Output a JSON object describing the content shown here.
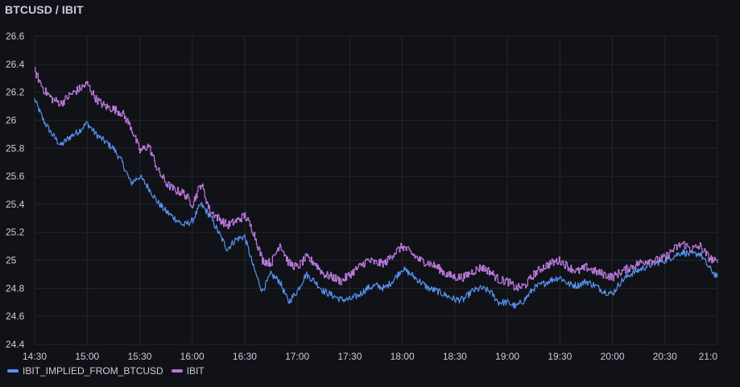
{
  "panel": {
    "title": "BTCUSD / IBIT"
  },
  "chart_data": {
    "type": "line",
    "title": "BTCUSD / IBIT",
    "xlabel": "",
    "ylabel": "",
    "x_ticks": [
      "14:30",
      "15:00",
      "15:30",
      "16:00",
      "16:30",
      "17:00",
      "17:30",
      "18:00",
      "18:30",
      "19:00",
      "19:30",
      "20:00",
      "20:30",
      "21:0"
    ],
    "y_ticks": [
      "24.4",
      "24.6",
      "24.8",
      "25",
      "25.2",
      "25.4",
      "25.6",
      "25.8",
      "26",
      "26.2",
      "26.4",
      "26.6"
    ],
    "xlim": [
      "14:30",
      "21:00"
    ],
    "ylim": [
      24.4,
      26.6
    ],
    "grid": true,
    "legend_position": "bottom-left",
    "series": [
      {
        "name": "IBIT_IMPLIED_FROM_BTCUSD",
        "color": "#5794f2",
        "style": "line",
        "points": [
          [
            "14:30",
            26.15
          ],
          [
            "14:35",
            26.0
          ],
          [
            "14:40",
            25.9
          ],
          [
            "14:45",
            25.82
          ],
          [
            "14:50",
            25.88
          ],
          [
            "14:55",
            25.92
          ],
          [
            "15:00",
            25.98
          ],
          [
            "15:05",
            25.9
          ],
          [
            "15:10",
            25.85
          ],
          [
            "15:15",
            25.8
          ],
          [
            "15:20",
            25.7
          ],
          [
            "15:25",
            25.55
          ],
          [
            "15:30",
            25.6
          ],
          [
            "15:35",
            25.52
          ],
          [
            "15:40",
            25.42
          ],
          [
            "15:45",
            25.35
          ],
          [
            "15:50",
            25.3
          ],
          [
            "15:55",
            25.25
          ],
          [
            "16:00",
            25.28
          ],
          [
            "16:05",
            25.4
          ],
          [
            "16:10",
            25.32
          ],
          [
            "16:15",
            25.2
          ],
          [
            "16:20",
            25.08
          ],
          [
            "16:25",
            25.15
          ],
          [
            "16:30",
            25.17
          ],
          [
            "16:35",
            24.95
          ],
          [
            "16:40",
            24.78
          ],
          [
            "16:45",
            24.9
          ],
          [
            "16:50",
            24.85
          ],
          [
            "16:55",
            24.7
          ],
          [
            "17:00",
            24.78
          ],
          [
            "17:05",
            24.9
          ],
          [
            "17:10",
            24.85
          ],
          [
            "17:15",
            24.78
          ],
          [
            "17:20",
            24.75
          ],
          [
            "17:25",
            24.72
          ],
          [
            "17:30",
            24.72
          ],
          [
            "17:35",
            24.75
          ],
          [
            "17:40",
            24.8
          ],
          [
            "17:45",
            24.82
          ],
          [
            "17:50",
            24.8
          ],
          [
            "17:55",
            24.86
          ],
          [
            "18:00",
            24.94
          ],
          [
            "18:05",
            24.9
          ],
          [
            "18:10",
            24.85
          ],
          [
            "18:15",
            24.8
          ],
          [
            "18:20",
            24.78
          ],
          [
            "18:25",
            24.75
          ],
          [
            "18:30",
            24.72
          ],
          [
            "18:35",
            24.72
          ],
          [
            "18:40",
            24.78
          ],
          [
            "18:45",
            24.8
          ],
          [
            "18:50",
            24.78
          ],
          [
            "18:55",
            24.7
          ],
          [
            "19:00",
            24.7
          ],
          [
            "19:05",
            24.67
          ],
          [
            "19:10",
            24.72
          ],
          [
            "19:15",
            24.8
          ],
          [
            "19:20",
            24.83
          ],
          [
            "19:25",
            24.86
          ],
          [
            "19:30",
            24.88
          ],
          [
            "19:35",
            24.83
          ],
          [
            "19:40",
            24.82
          ],
          [
            "19:45",
            24.85
          ],
          [
            "19:50",
            24.82
          ],
          [
            "19:55",
            24.78
          ],
          [
            "20:00",
            24.76
          ],
          [
            "20:05",
            24.85
          ],
          [
            "20:10",
            24.9
          ],
          [
            "20:15",
            24.93
          ],
          [
            "20:20",
            24.96
          ],
          [
            "20:25",
            24.98
          ],
          [
            "20:30",
            25.0
          ],
          [
            "20:35",
            25.03
          ],
          [
            "20:40",
            25.06
          ],
          [
            "20:45",
            25.04
          ],
          [
            "20:50",
            25.05
          ],
          [
            "20:55",
            24.95
          ],
          [
            "21:00",
            24.88
          ]
        ]
      },
      {
        "name": "IBIT",
        "color": "#b877d9",
        "style": "step",
        "points": [
          [
            "14:30",
            26.35
          ],
          [
            "14:35",
            26.22
          ],
          [
            "14:40",
            26.15
          ],
          [
            "14:45",
            26.12
          ],
          [
            "14:50",
            26.18
          ],
          [
            "14:55",
            26.22
          ],
          [
            "15:00",
            26.26
          ],
          [
            "15:05",
            26.15
          ],
          [
            "15:10",
            26.1
          ],
          [
            "15:15",
            26.08
          ],
          [
            "15:20",
            26.05
          ],
          [
            "15:25",
            25.95
          ],
          [
            "15:30",
            25.78
          ],
          [
            "15:35",
            25.82
          ],
          [
            "15:40",
            25.65
          ],
          [
            "15:45",
            25.55
          ],
          [
            "15:50",
            25.5
          ],
          [
            "15:55",
            25.48
          ],
          [
            "16:00",
            25.4
          ],
          [
            "16:05",
            25.55
          ],
          [
            "16:10",
            25.35
          ],
          [
            "16:15",
            25.3
          ],
          [
            "16:20",
            25.25
          ],
          [
            "16:25",
            25.28
          ],
          [
            "16:30",
            25.32
          ],
          [
            "16:35",
            25.2
          ],
          [
            "16:40",
            25.0
          ],
          [
            "16:45",
            24.98
          ],
          [
            "16:50",
            25.12
          ],
          [
            "16:55",
            24.98
          ],
          [
            "17:00",
            24.95
          ],
          [
            "17:05",
            25.02
          ],
          [
            "17:10",
            24.98
          ],
          [
            "17:15",
            24.9
          ],
          [
            "17:20",
            24.88
          ],
          [
            "17:25",
            24.85
          ],
          [
            "17:30",
            24.9
          ],
          [
            "17:35",
            24.95
          ],
          [
            "17:40",
            25.0
          ],
          [
            "17:45",
            24.98
          ],
          [
            "17:50",
            24.98
          ],
          [
            "17:55",
            25.05
          ],
          [
            "18:00",
            25.1
          ],
          [
            "18:05",
            25.05
          ],
          [
            "18:10",
            25.0
          ],
          [
            "18:15",
            24.98
          ],
          [
            "18:20",
            24.95
          ],
          [
            "18:25",
            24.9
          ],
          [
            "18:30",
            24.88
          ],
          [
            "18:35",
            24.88
          ],
          [
            "18:40",
            24.92
          ],
          [
            "18:45",
            24.95
          ],
          [
            "18:50",
            24.92
          ],
          [
            "18:55",
            24.86
          ],
          [
            "19:00",
            24.85
          ],
          [
            "19:05",
            24.8
          ],
          [
            "19:10",
            24.82
          ],
          [
            "19:15",
            24.9
          ],
          [
            "19:20",
            24.95
          ],
          [
            "19:25",
            24.98
          ],
          [
            "19:30",
            25.0
          ],
          [
            "19:35",
            24.95
          ],
          [
            "19:40",
            24.92
          ],
          [
            "19:45",
            24.95
          ],
          [
            "19:50",
            24.92
          ],
          [
            "19:55",
            24.9
          ],
          [
            "20:00",
            24.88
          ],
          [
            "20:05",
            24.92
          ],
          [
            "20:10",
            24.95
          ],
          [
            "20:15",
            24.98
          ],
          [
            "20:20",
            25.0
          ],
          [
            "20:25",
            25.0
          ],
          [
            "20:30",
            25.02
          ],
          [
            "20:35",
            25.08
          ],
          [
            "20:40",
            25.12
          ],
          [
            "20:45",
            25.08
          ],
          [
            "20:50",
            25.1
          ],
          [
            "20:55",
            25.02
          ],
          [
            "21:00",
            24.98
          ]
        ]
      }
    ]
  }
}
